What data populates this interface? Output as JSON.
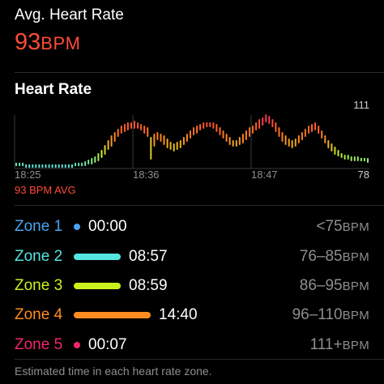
{
  "header": {
    "title": "Avg. Heart Rate",
    "value": "93",
    "unit": "BPM"
  },
  "chart_section": {
    "title": "Heart Rate"
  },
  "chart_data": {
    "type": "bar",
    "x_ticks": [
      "18:25",
      "18:36",
      "18:47"
    ],
    "y_max_label": "111",
    "y_min_label": "78",
    "avg_label": "93 BPM AVG",
    "ylim": [
      78,
      111
    ],
    "ranges": [
      [
        80,
        81
      ],
      [
        80,
        81
      ],
      [
        80,
        81
      ],
      [
        79,
        80
      ],
      [
        79,
        80
      ],
      [
        79,
        80
      ],
      [
        79,
        80
      ],
      [
        79,
        80
      ],
      [
        79,
        80
      ],
      [
        79,
        80
      ],
      [
        79,
        80
      ],
      [
        79,
        80
      ],
      [
        79,
        80
      ],
      [
        79,
        80
      ],
      [
        79,
        80
      ],
      [
        79,
        80
      ],
      [
        79,
        80
      ],
      [
        79,
        80
      ],
      [
        80,
        81
      ],
      [
        80,
        81
      ],
      [
        80,
        81
      ],
      [
        80,
        82
      ],
      [
        81,
        83
      ],
      [
        81,
        84
      ],
      [
        82,
        85
      ],
      [
        83,
        87
      ],
      [
        85,
        89
      ],
      [
        87,
        92
      ],
      [
        90,
        95
      ],
      [
        92,
        98
      ],
      [
        95,
        100
      ],
      [
        98,
        102
      ],
      [
        100,
        104
      ],
      [
        101,
        105
      ],
      [
        102,
        106
      ],
      [
        103,
        106
      ],
      [
        103,
        107
      ],
      [
        103,
        106
      ],
      [
        102,
        105
      ],
      [
        100,
        104
      ],
      [
        98,
        103
      ],
      [
        84,
        97
      ],
      [
        92,
        99
      ],
      [
        96,
        100
      ],
      [
        95,
        99
      ],
      [
        93,
        98
      ],
      [
        91,
        96
      ],
      [
        90,
        94
      ],
      [
        89,
        93
      ],
      [
        90,
        94
      ],
      [
        91,
        95
      ],
      [
        93,
        97
      ],
      [
        95,
        99
      ],
      [
        97,
        101
      ],
      [
        99,
        103
      ],
      [
        100,
        104
      ],
      [
        102,
        105
      ],
      [
        103,
        106
      ],
      [
        104,
        106
      ],
      [
        104,
        106
      ],
      [
        103,
        106
      ],
      [
        101,
        105
      ],
      [
        99,
        103
      ],
      [
        97,
        101
      ],
      [
        95,
        99
      ],
      [
        93,
        97
      ],
      [
        92,
        95
      ],
      [
        92,
        95
      ],
      [
        93,
        97
      ],
      [
        94,
        99
      ],
      [
        96,
        101
      ],
      [
        98,
        103
      ],
      [
        100,
        104
      ],
      [
        102,
        106
      ],
      [
        103,
        108
      ],
      [
        105,
        109
      ],
      [
        107,
        111
      ],
      [
        106,
        110
      ],
      [
        104,
        108
      ],
      [
        101,
        106
      ],
      [
        98,
        103
      ],
      [
        95,
        100
      ],
      [
        93,
        98
      ],
      [
        92,
        96
      ],
      [
        91,
        95
      ],
      [
        92,
        96
      ],
      [
        94,
        98
      ],
      [
        96,
        100
      ],
      [
        98,
        102
      ],
      [
        100,
        104
      ],
      [
        101,
        105
      ],
      [
        102,
        106
      ],
      [
        100,
        104
      ],
      [
        97,
        101
      ],
      [
        94,
        98
      ],
      [
        91,
        95
      ],
      [
        89,
        93
      ],
      [
        87,
        91
      ],
      [
        86,
        89
      ],
      [
        85,
        87
      ],
      [
        84,
        86
      ],
      [
        84,
        86
      ],
      [
        83,
        85
      ],
      [
        83,
        85
      ],
      [
        83,
        85
      ],
      [
        83,
        84
      ],
      [
        83,
        84
      ],
      [
        82,
        84
      ]
    ]
  },
  "colors": {
    "zone1": "#4aa3ef",
    "zone2": "#54e5e1",
    "zone3": "#c9f21b",
    "zone4": "#ff8c1f",
    "zone5": "#f4256e",
    "accent": "#ff4b36"
  },
  "zones": [
    {
      "label": "Zone 1",
      "time": "00:00",
      "range_num": "<75",
      "range_unit": "BPM",
      "fraction": 0.0
    },
    {
      "label": "Zone 2",
      "time": "08:57",
      "range_num": "76–85",
      "range_unit": "BPM",
      "fraction": 0.61
    },
    {
      "label": "Zone 3",
      "time": "08:59",
      "range_num": "86–95",
      "range_unit": "BPM",
      "fraction": 0.613
    },
    {
      "label": "Zone 4",
      "time": "14:40",
      "range_num": "96–110",
      "range_unit": "BPM",
      "fraction": 1.0
    },
    {
      "label": "Zone 5",
      "time": "00:07",
      "range_num": "111+",
      "range_unit": "BPM",
      "fraction": 0.008
    }
  ],
  "footnote": "Estimated time in each heart rate zone."
}
